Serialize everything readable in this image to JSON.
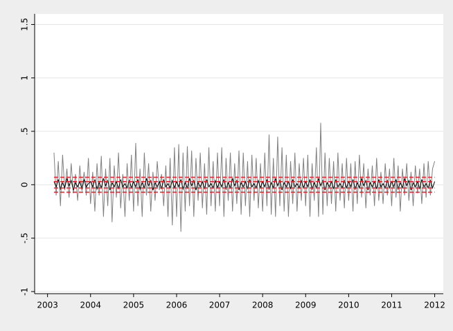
{
  "chart_data": {
    "type": "line",
    "xlim": [
      2002.7,
      2012.2
    ],
    "xticks": [
      2003,
      2004,
      2005,
      2006,
      2007,
      2008,
      2009,
      2010,
      2011,
      2012
    ],
    "ylim": [
      -1.02,
      1.6
    ],
    "yticks": [
      {
        "value": -1,
        "label": "-1"
      },
      {
        "value": -0.5,
        "label": "-.5"
      },
      0,
      {
        "value": 0.5,
        "label": ".5"
      },
      1,
      1.5
    ],
    "grid": true,
    "x": [
      2003.15,
      2003.2,
      2003.25,
      2003.3,
      2003.35,
      2003.4,
      2003.45,
      2003.5,
      2003.55,
      2003.6,
      2003.65,
      2003.7,
      2003.75,
      2003.8,
      2003.85,
      2003.9,
      2003.95,
      2004.0,
      2004.05,
      2004.1,
      2004.15,
      2004.2,
      2004.25,
      2004.3,
      2004.35,
      2004.4,
      2004.45,
      2004.5,
      2004.55,
      2004.6,
      2004.65,
      2004.7,
      2004.75,
      2004.8,
      2004.85,
      2004.9,
      2004.95,
      2005.0,
      2005.05,
      2005.1,
      2005.15,
      2005.2,
      2005.25,
      2005.3,
      2005.35,
      2005.4,
      2005.45,
      2005.5,
      2005.55,
      2005.6,
      2005.65,
      2005.7,
      2005.75,
      2005.8,
      2005.85,
      2005.9,
      2005.95,
      2006.0,
      2006.05,
      2006.1,
      2006.15,
      2006.2,
      2006.25,
      2006.3,
      2006.35,
      2006.4,
      2006.45,
      2006.5,
      2006.55,
      2006.6,
      2006.65,
      2006.7,
      2006.75,
      2006.8,
      2006.85,
      2006.9,
      2006.95,
      2007.0,
      2007.05,
      2007.1,
      2007.15,
      2007.2,
      2007.25,
      2007.3,
      2007.35,
      2007.4,
      2007.45,
      2007.5,
      2007.55,
      2007.6,
      2007.65,
      2007.7,
      2007.75,
      2007.8,
      2007.85,
      2007.9,
      2007.95,
      2008.0,
      2008.05,
      2008.1,
      2008.15,
      2008.2,
      2008.25,
      2008.3,
      2008.35,
      2008.4,
      2008.45,
      2008.5,
      2008.55,
      2008.6,
      2008.65,
      2008.7,
      2008.75,
      2008.8,
      2008.85,
      2008.9,
      2008.95,
      2009.0,
      2009.05,
      2009.1,
      2009.15,
      2009.2,
      2009.25,
      2009.3,
      2009.35,
      2009.4,
      2009.45,
      2009.5,
      2009.55,
      2009.6,
      2009.65,
      2009.7,
      2009.75,
      2009.8,
      2009.85,
      2009.9,
      2009.95,
      2010.0,
      2010.05,
      2010.1,
      2010.15,
      2010.2,
      2010.25,
      2010.3,
      2010.35,
      2010.4,
      2010.45,
      2010.5,
      2010.55,
      2010.6,
      2010.65,
      2010.7,
      2010.75,
      2010.8,
      2010.85,
      2010.9,
      2010.95,
      2011.0,
      2011.05,
      2011.1,
      2011.15,
      2011.2,
      2011.25,
      2011.3,
      2011.35,
      2011.4,
      2011.45,
      2011.5,
      2011.55,
      2011.6,
      2011.65,
      2011.7,
      2011.75,
      2011.8,
      2011.85,
      2011.9,
      2011.95,
      2012.0
    ],
    "series": [
      {
        "color": "#808080",
        "values": [
          0.3,
          -0.1,
          0.22,
          -0.2,
          0.28,
          -0.05,
          0.15,
          -0.12,
          0.2,
          -0.08,
          0.1,
          -0.15,
          0.18,
          -0.06,
          0.12,
          -0.1,
          0.25,
          -0.18,
          0.12,
          -0.25,
          0.2,
          -0.1,
          0.27,
          -0.3,
          0.15,
          -0.2,
          0.25,
          -0.35,
          0.18,
          -0.12,
          0.3,
          -0.22,
          0.1,
          -0.3,
          0.2,
          -0.15,
          0.28,
          -0.25,
          0.39,
          -0.2,
          0.15,
          -0.3,
          0.3,
          -0.1,
          0.2,
          -0.25,
          0.12,
          -0.15,
          0.22,
          -0.05,
          0.1,
          -0.2,
          0.18,
          -0.3,
          0.25,
          -0.38,
          0.35,
          -0.3,
          0.38,
          -0.44,
          0.3,
          -0.25,
          0.36,
          -0.2,
          0.32,
          -0.3,
          0.25,
          -0.15,
          0.3,
          -0.22,
          0.2,
          -0.28,
          0.35,
          -0.2,
          0.22,
          -0.25,
          0.3,
          -0.2,
          0.35,
          -0.3,
          0.25,
          -0.15,
          0.3,
          -0.25,
          0.2,
          -0.18,
          0.32,
          -0.28,
          0.3,
          -0.2,
          0.22,
          -0.3,
          0.28,
          -0.15,
          0.25,
          -0.22,
          0.2,
          -0.25,
          0.3,
          -0.2,
          0.47,
          -0.28,
          0.25,
          -0.3,
          0.45,
          -0.2,
          0.35,
          -0.25,
          0.28,
          -0.3,
          0.22,
          -0.18,
          0.3,
          -0.25,
          0.2,
          -0.15,
          0.25,
          -0.2,
          0.28,
          -0.3,
          0.2,
          -0.15,
          0.35,
          -0.3,
          0.58,
          -0.28,
          0.3,
          -0.2,
          0.25,
          -0.18,
          0.22,
          -0.25,
          0.3,
          -0.15,
          0.2,
          -0.22,
          0.25,
          -0.15,
          0.2,
          -0.25,
          0.22,
          -0.18,
          0.28,
          -0.12,
          0.2,
          -0.22,
          0.15,
          -0.1,
          0.18,
          -0.2,
          0.25,
          -0.15,
          0.12,
          -0.18,
          0.2,
          -0.1,
          0.15,
          -0.2,
          0.25,
          -0.12,
          0.18,
          -0.25,
          0.15,
          -0.1,
          0.2,
          -0.15,
          0.12,
          -0.2,
          0.18,
          -0.08,
          0.15,
          -0.18,
          0.2,
          -0.12,
          0.22,
          -0.1,
          0.15,
          0.22
        ]
      },
      {
        "color": "#000000",
        "values": [
          0.03,
          -0.02,
          0.05,
          -0.04,
          0.02,
          -0.03,
          0.06,
          -0.01,
          0.04,
          -0.05,
          0.02,
          -0.02,
          0.03,
          -0.04,
          0.05,
          -0.02,
          0.01,
          0.03,
          -0.02,
          0.05,
          -0.04,
          0.02,
          -0.03,
          0.06,
          -0.01,
          0.04,
          -0.05,
          0.02,
          -0.02,
          0.03,
          -0.04,
          0.05,
          -0.02,
          0.01,
          -0.03,
          0.04,
          -0.03,
          0.03,
          -0.02,
          0.05,
          -0.04,
          0.02,
          -0.03,
          0.06,
          -0.01,
          0.04,
          -0.05,
          0.02,
          -0.02,
          0.03,
          -0.04,
          0.05,
          -0.02,
          0.01,
          -0.03,
          0.04,
          -0.03,
          0.03,
          -0.02,
          0.05,
          -0.04,
          0.02,
          -0.03,
          0.06,
          -0.01,
          0.04,
          -0.05,
          0.02,
          -0.02,
          0.03,
          -0.04,
          0.05,
          -0.02,
          0.01,
          -0.03,
          0.04,
          -0.03,
          0.03,
          -0.02,
          0.05,
          -0.04,
          0.02,
          -0.03,
          0.06,
          -0.01,
          0.04,
          -0.05,
          0.02,
          -0.02,
          0.03,
          -0.04,
          0.05,
          -0.02,
          0.01,
          -0.03,
          0.04,
          -0.03,
          0.03,
          -0.02,
          0.05,
          -0.04,
          0.02,
          -0.03,
          0.06,
          -0.01,
          0.04,
          -0.05,
          0.02,
          -0.02,
          0.03,
          -0.04,
          0.05,
          -0.02,
          0.01,
          -0.03,
          0.04,
          -0.03,
          0.03,
          -0.02,
          0.05,
          -0.04,
          0.02,
          -0.03,
          0.06,
          -0.01,
          0.04,
          -0.05,
          0.02,
          -0.02,
          0.03,
          -0.04,
          0.05,
          -0.02,
          0.01,
          -0.03,
          0.04,
          -0.03,
          0.03,
          -0.02,
          0.05,
          -0.04,
          0.02,
          -0.03,
          0.06,
          -0.01,
          0.04,
          -0.05,
          0.02,
          -0.02,
          0.03,
          -0.04,
          0.05,
          -0.02,
          0.01,
          -0.03,
          0.04,
          -0.03,
          0.03,
          -0.02,
          0.05,
          -0.04,
          0.02,
          -0.03,
          0.06,
          -0.01,
          0.04,
          -0.05,
          0.02,
          -0.02,
          0.03,
          -0.04,
          0.05,
          -0.02,
          0.01,
          -0.03,
          0.04,
          -0.03,
          0.03
        ]
      }
    ],
    "reference_lines": {
      "color": "#e8202a",
      "values": [
        0.07,
        0.03,
        -0.03,
        -0.07
      ]
    }
  }
}
